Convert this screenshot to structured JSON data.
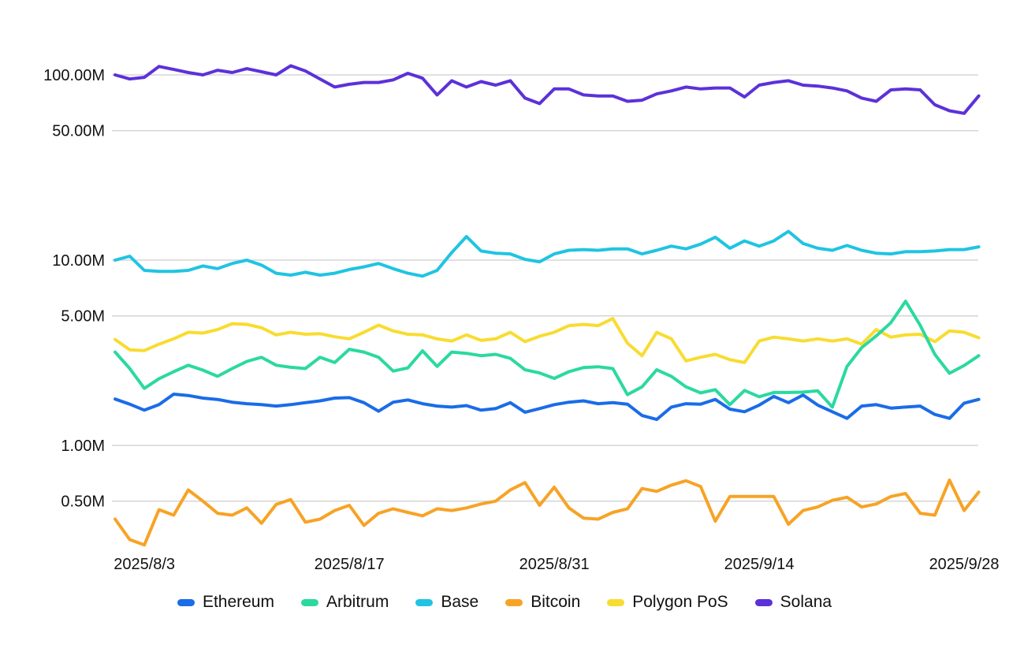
{
  "chart_data": {
    "type": "line",
    "title": "",
    "xlabel": "",
    "ylabel": "",
    "y_scale": "log",
    "grid": true,
    "legend_position": "bottom",
    "unit": "M",
    "dates": [
      "2025/8/1",
      "2025/8/2",
      "2025/8/3",
      "2025/8/4",
      "2025/8/5",
      "2025/8/6",
      "2025/8/7",
      "2025/8/8",
      "2025/8/9",
      "2025/8/10",
      "2025/8/11",
      "2025/8/12",
      "2025/8/13",
      "2025/8/14",
      "2025/8/15",
      "2025/8/16",
      "2025/8/17",
      "2025/8/18",
      "2025/8/19",
      "2025/8/20",
      "2025/8/21",
      "2025/8/22",
      "2025/8/23",
      "2025/8/24",
      "2025/8/25",
      "2025/8/26",
      "2025/8/27",
      "2025/8/28",
      "2025/8/29",
      "2025/8/30",
      "2025/8/31",
      "2025/9/1",
      "2025/9/2",
      "2025/9/3",
      "2025/9/4",
      "2025/9/5",
      "2025/9/6",
      "2025/9/7",
      "2025/9/8",
      "2025/9/9",
      "2025/9/10",
      "2025/9/11",
      "2025/9/12",
      "2025/9/13",
      "2025/9/14",
      "2025/9/15",
      "2025/9/16",
      "2025/9/17",
      "2025/9/18",
      "2025/9/19",
      "2025/9/20",
      "2025/9/21",
      "2025/9/22",
      "2025/9/23",
      "2025/9/24",
      "2025/9/25",
      "2025/9/26",
      "2025/9/27",
      "2025/9/28",
      "2025/9/29"
    ],
    "x_axis": {
      "ticks": [
        "2025/8/3",
        "2025/8/17",
        "2025/8/31",
        "2025/9/14",
        "2025/9/28"
      ]
    },
    "y_axis": {
      "ticks": [
        {
          "value": 100,
          "label": "100.00M"
        },
        {
          "value": 50,
          "label": "50.00M"
        },
        {
          "value": 10,
          "label": "10.00M"
        },
        {
          "value": 5,
          "label": "5.00M"
        },
        {
          "value": 1,
          "label": "1.00M"
        },
        {
          "value": 0.5,
          "label": "0.50M"
        }
      ]
    },
    "series": [
      {
        "name": "Ethereum",
        "color": "#1a6ce8",
        "values_millions": [
          1.78,
          1.67,
          1.55,
          1.66,
          1.89,
          1.86,
          1.8,
          1.77,
          1.71,
          1.68,
          1.66,
          1.63,
          1.66,
          1.7,
          1.74,
          1.8,
          1.81,
          1.7,
          1.53,
          1.71,
          1.76,
          1.68,
          1.63,
          1.61,
          1.64,
          1.55,
          1.58,
          1.7,
          1.51,
          1.58,
          1.66,
          1.71,
          1.74,
          1.68,
          1.7,
          1.67,
          1.45,
          1.38,
          1.61,
          1.68,
          1.67,
          1.77,
          1.57,
          1.52,
          1.65,
          1.84,
          1.7,
          1.87,
          1.65,
          1.52,
          1.4,
          1.63,
          1.66,
          1.59,
          1.61,
          1.63,
          1.47,
          1.4,
          1.69,
          1.77
        ]
      },
      {
        "name": "Arbitrum",
        "color": "#2bd9a0",
        "values_millions": [
          3.19,
          2.6,
          2.03,
          2.29,
          2.5,
          2.71,
          2.55,
          2.36,
          2.6,
          2.84,
          2.99,
          2.71,
          2.64,
          2.6,
          2.99,
          2.8,
          3.3,
          3.19,
          2.99,
          2.52,
          2.62,
          3.24,
          2.67,
          3.19,
          3.14,
          3.05,
          3.1,
          2.95,
          2.56,
          2.46,
          2.3,
          2.5,
          2.63,
          2.66,
          2.6,
          1.88,
          2.07,
          2.56,
          2.36,
          2.07,
          1.92,
          2.0,
          1.66,
          1.98,
          1.83,
          1.93,
          1.93,
          1.94,
          1.97,
          1.61,
          2.67,
          3.37,
          3.9,
          4.6,
          6.0,
          4.45,
          3.1,
          2.45,
          2.7,
          3.05
        ]
      },
      {
        "name": "Base",
        "color": "#20c4e2",
        "values_millions": [
          10.0,
          10.5,
          8.8,
          8.7,
          8.7,
          8.8,
          9.3,
          9.0,
          9.6,
          10.0,
          9.4,
          8.5,
          8.3,
          8.6,
          8.3,
          8.5,
          8.9,
          9.2,
          9.6,
          9.0,
          8.5,
          8.2,
          8.8,
          11.0,
          13.4,
          11.2,
          10.9,
          10.8,
          10.1,
          9.8,
          10.8,
          11.3,
          11.4,
          11.3,
          11.5,
          11.5,
          10.8,
          11.3,
          11.9,
          11.5,
          12.2,
          13.3,
          11.6,
          12.7,
          11.9,
          12.7,
          14.3,
          12.3,
          11.6,
          11.3,
          12.0,
          11.3,
          10.9,
          10.8,
          11.1,
          11.1,
          11.2,
          11.4,
          11.4,
          11.8
        ]
      },
      {
        "name": "Bitcoin",
        "color": "#f7a326",
        "values_millions": [
          0.4,
          0.31,
          0.29,
          0.45,
          0.42,
          0.575,
          0.5,
          0.43,
          0.42,
          0.46,
          0.38,
          0.48,
          0.51,
          0.385,
          0.4,
          0.445,
          0.475,
          0.37,
          0.43,
          0.455,
          0.435,
          0.417,
          0.455,
          0.445,
          0.46,
          0.483,
          0.5,
          0.575,
          0.63,
          0.475,
          0.595,
          0.46,
          0.405,
          0.4,
          0.435,
          0.455,
          0.585,
          0.565,
          0.61,
          0.645,
          0.6,
          0.39,
          0.53,
          0.53,
          0.53,
          0.53,
          0.375,
          0.445,
          0.465,
          0.505,
          0.525,
          0.465,
          0.483,
          0.53,
          0.55,
          0.43,
          0.42,
          0.65,
          0.445,
          0.56
        ]
      },
      {
        "name": "Polygon PoS",
        "color": "#f8dc30",
        "values_millions": [
          3.73,
          3.28,
          3.25,
          3.52,
          3.76,
          4.08,
          4.04,
          4.22,
          4.54,
          4.5,
          4.32,
          3.95,
          4.08,
          3.98,
          4.01,
          3.86,
          3.76,
          4.08,
          4.46,
          4.15,
          3.98,
          3.95,
          3.76,
          3.66,
          3.95,
          3.69,
          3.76,
          4.08,
          3.63,
          3.88,
          4.08,
          4.43,
          4.5,
          4.43,
          4.84,
          3.56,
          3.05,
          4.08,
          3.76,
          2.86,
          2.99,
          3.1,
          2.9,
          2.8,
          3.66,
          3.84,
          3.76,
          3.66,
          3.76,
          3.66,
          3.76,
          3.52,
          4.22,
          3.84,
          3.95,
          3.98,
          3.63,
          4.15,
          4.08,
          3.81
        ]
      },
      {
        "name": "Solana",
        "color": "#5c31d9",
        "values_millions": [
          100,
          95,
          97,
          111,
          107,
          103,
          100,
          106,
          103,
          108,
          104,
          100,
          112,
          105,
          95,
          86,
          89,
          91,
          91,
          94,
          102,
          96,
          78,
          93,
          86,
          92,
          88,
          93,
          75,
          70,
          84,
          84,
          78,
          77,
          77,
          72,
          73,
          79,
          82,
          86,
          84,
          85,
          85,
          76,
          88,
          91,
          93,
          88,
          87,
          85,
          82,
          75,
          72,
          83,
          84,
          83,
          69,
          64,
          62,
          77
        ]
      }
    ],
    "draw_order": [
      "Solana",
      "Base",
      "Polygon PoS",
      "Bitcoin",
      "Ethereum",
      "Arbitrum"
    ]
  },
  "colors": {
    "grid": "#cdcdcd",
    "tick_text": "#111111",
    "background": "#ffffff"
  }
}
